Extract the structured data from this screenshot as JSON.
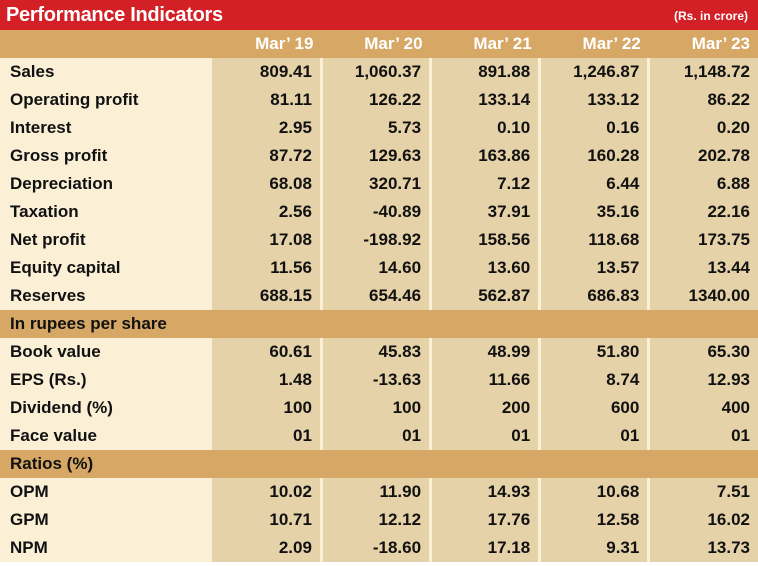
{
  "title": "Performance  Indicators",
  "unit": "(Rs. in crore)",
  "columns": [
    "Mar’ 19",
    "Mar’ 20",
    "Mar’ 21",
    "Mar’ 22",
    "Mar’ 23"
  ],
  "rows": [
    {
      "label": "Sales",
      "values": [
        "809.41",
        "1,060.37",
        "891.88",
        "1,246.87",
        "1,148.72"
      ]
    },
    {
      "label": "Operating profit",
      "values": [
        "81.11",
        "126.22",
        "133.14",
        "133.12",
        "86.22"
      ]
    },
    {
      "label": "Interest",
      "values": [
        "2.95",
        "5.73",
        "0.10",
        "0.16",
        "0.20"
      ]
    },
    {
      "label": "Gross profit",
      "values": [
        "87.72",
        "129.63",
        "163.86",
        "160.28",
        "202.78"
      ]
    },
    {
      "label": "Depreciation",
      "values": [
        "68.08",
        "320.71",
        "7.12",
        "6.44",
        "6.88"
      ]
    },
    {
      "label": "Taxation",
      "values": [
        "2.56",
        "-40.89",
        "37.91",
        "35.16",
        "22.16"
      ]
    },
    {
      "label": "Net profit",
      "values": [
        "17.08",
        "-198.92",
        "158.56",
        "118.68",
        "173.75"
      ]
    },
    {
      "label": "Equity capital",
      "values": [
        "11.56",
        "14.60",
        "13.60",
        "13.57",
        "13.44"
      ]
    },
    {
      "label": "Reserves",
      "values": [
        "688.15",
        "654.46",
        "562.87",
        "686.83",
        "1340.00"
      ]
    }
  ],
  "section_per_share": "In rupees per share",
  "per_share_rows": [
    {
      "label": "Book value",
      "values": [
        "60.61",
        "45.83",
        "48.99",
        "51.80",
        "65.30"
      ]
    },
    {
      "label": "EPS (Rs.)",
      "values": [
        "1.48",
        "-13.63",
        "11.66",
        "8.74",
        "12.93"
      ]
    },
    {
      "label": "Dividend (%)",
      "values": [
        "100",
        "100",
        "200",
        "600",
        "400"
      ]
    },
    {
      "label": "Face  value",
      "values": [
        "01",
        "01",
        "01",
        "01",
        "01"
      ]
    }
  ],
  "section_ratios": "Ratios (%)",
  "ratio_rows": [
    {
      "label": "OPM",
      "values": [
        "10.02",
        "11.90",
        "14.93",
        "10.68",
        "7.51"
      ]
    },
    {
      "label": "GPM",
      "values": [
        "10.71",
        "12.12",
        "17.76",
        "12.58",
        "16.02"
      ]
    },
    {
      "label": "NPM",
      "values": [
        "2.09",
        "-18.60",
        "17.18",
        "9.31",
        "13.73"
      ]
    }
  ],
  "colors": {
    "title_bar": "#d31f26",
    "header": "#d6a765",
    "label_cell": "#fbf0d6",
    "value_cell": "#e6d2a8"
  }
}
